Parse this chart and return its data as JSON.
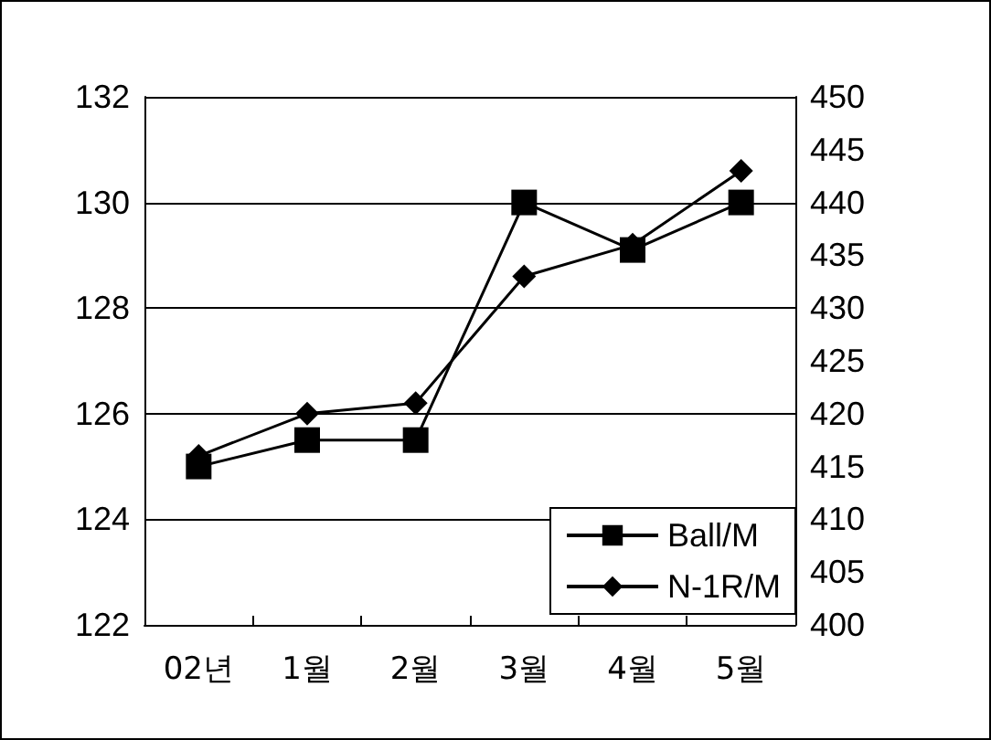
{
  "chart_data": {
    "type": "line",
    "categories": [
      "02년",
      "1월",
      "2월",
      "3월",
      "4월",
      "5월"
    ],
    "series": [
      {
        "name": "Ball/M",
        "color": "#000000",
        "marker": "square",
        "values": [
          125.0,
          125.5,
          125.5,
          130.0,
          129.1,
          130.0
        ]
      },
      {
        "name": "N-1R/M",
        "color": "#000000",
        "marker": "diamond",
        "axis": "y2",
        "values": [
          416,
          420,
          421,
          433,
          436,
          443
        ]
      }
    ],
    "ylim": [
      122,
      132
    ],
    "yticks": [
      122,
      124,
      126,
      128,
      130,
      132
    ],
    "y2lim": [
      400,
      450
    ],
    "y2ticks": [
      400,
      405,
      410,
      415,
      420,
      425,
      430,
      435,
      440,
      445,
      450
    ],
    "grid": "y",
    "legend": "bottom right"
  }
}
